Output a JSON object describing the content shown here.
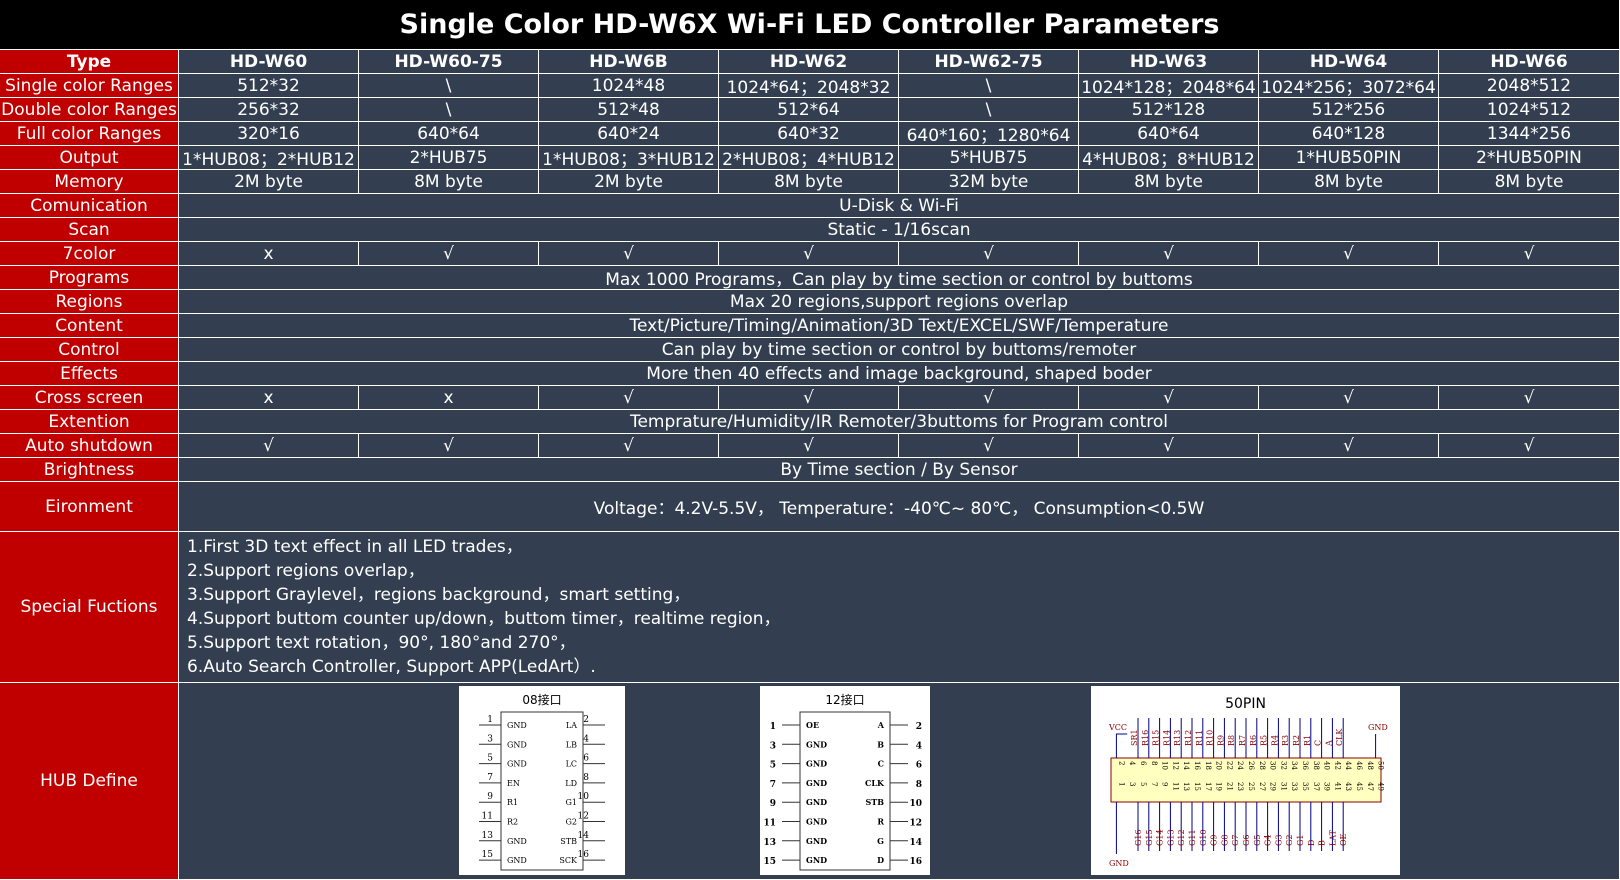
{
  "title": "Single Color HD-W6X Wi-Fi LED Controller Parameters",
  "header": {
    "label": "Type",
    "models": [
      "HD-W60",
      "HD-W60-75",
      "HD-W6B",
      "HD-W62",
      "HD-W62-75",
      "HD-W63",
      "HD-W64",
      "HD-W66"
    ]
  },
  "rows": [
    {
      "label": "Single color Ranges",
      "cells": [
        "512*32",
        "\\",
        "1024*48",
        "1024*64；2048*32",
        "\\",
        "1024*128；2048*64",
        "1024*256；3072*64",
        "2048*512"
      ]
    },
    {
      "label": "Double color Ranges",
      "cells": [
        "256*32",
        "\\",
        "512*48",
        "512*64",
        "\\",
        "512*128",
        "512*256",
        "1024*512"
      ]
    },
    {
      "label": "Full color Ranges",
      "cells": [
        "320*16",
        "640*64",
        "640*24",
        "640*32",
        "640*160；1280*64",
        "640*64",
        "640*128",
        "1344*256"
      ]
    },
    {
      "label": "Output",
      "cells": [
        "1*HUB08；2*HUB12",
        "2*HUB75",
        "1*HUB08；3*HUB12",
        "2*HUB08；4*HUB12",
        "5*HUB75",
        "4*HUB08；8*HUB12",
        "1*HUB50PIN",
        "2*HUB50PIN"
      ]
    },
    {
      "label": "Memory",
      "cells": [
        "2M byte",
        "8M byte",
        "2M byte",
        "8M byte",
        "32M byte",
        "8M byte",
        "8M byte",
        "8M byte"
      ]
    },
    {
      "label": "Comunication",
      "span": "U-Disk & Wi-Fi"
    },
    {
      "label": "Scan",
      "span": "Static - 1/16scan"
    },
    {
      "label": "7color",
      "cells": [
        "x",
        "√",
        "√",
        "√",
        "√",
        "√",
        "√",
        "√"
      ]
    },
    {
      "label": "Programs",
      "span": "Max 1000 Programs，Can play by time section or control by buttoms"
    },
    {
      "label": "Regions",
      "span": "Max 20 regions,support regions overlap"
    },
    {
      "label": "Content",
      "span": "Text/Picture/Timing/Animation/3D Text/EXCEL/SWF/Temperature"
    },
    {
      "label": "Control",
      "span": "Can play by time section or control by buttoms/remoter"
    },
    {
      "label": "Effects",
      "span": "More then 40 effects and image background, shaped boder"
    },
    {
      "label": "Cross screen",
      "cells": [
        "x",
        "x",
        "√",
        "√",
        "√",
        "√",
        "√",
        "√"
      ]
    },
    {
      "label": "Extention",
      "span": "Temprature/Humidity/IR Remoter/3buttoms for Program control"
    },
    {
      "label": "Auto shutdown",
      "cells": [
        "√",
        "√",
        "√",
        "√",
        "√",
        "√",
        "√",
        "√"
      ]
    },
    {
      "label": "Brightness",
      "span": "By Time section / By Sensor"
    },
    {
      "label": "Eironment",
      "span": "Voltage：4.2V-5.5V， Temperature：-40℃~ 80℃， Consumption<0.5W"
    },
    {
      "label": "Special Fuctions",
      "lines": [
        "1.First 3D text effect in all LED trades，",
        "2.Support regions overlap，",
        "3.Support Graylevel，regions background，smart setting，",
        "4.Support buttom counter up/down，buttom timer，realtime region，",
        "5.Support text rotation，90°, 180°and 270°，",
        "6.Auto Search Controller, Support APP(LedArt）."
      ]
    }
  ],
  "hub": {
    "label": "HUB Define",
    "diagrams": [
      {
        "title": "08接口",
        "pins": [
          [
            1,
            "GND",
            "LA",
            2
          ],
          [
            3,
            "GND",
            "LB",
            4
          ],
          [
            5,
            "GND",
            "LC",
            6
          ],
          [
            7,
            "EN",
            "LD",
            8
          ],
          [
            9,
            "R1",
            "G1",
            10
          ],
          [
            11,
            "R2",
            "G2",
            12
          ],
          [
            13,
            "GND",
            "STB",
            14
          ],
          [
            15,
            "GND",
            "SCK",
            16
          ]
        ]
      },
      {
        "title": "12接口",
        "pins": [
          [
            1,
            "OE",
            "A",
            2
          ],
          [
            3,
            "GND",
            "B",
            4
          ],
          [
            5,
            "GND",
            "C",
            6
          ],
          [
            7,
            "GND",
            "CLK",
            8
          ],
          [
            9,
            "GND",
            "STB",
            10
          ],
          [
            11,
            "GND",
            "R",
            12
          ],
          [
            13,
            "GND",
            "G",
            14
          ],
          [
            15,
            "GND",
            "D",
            16
          ]
        ]
      },
      {
        "title": "50PIN",
        "vcc": "VCC",
        "gnd_top": "GND",
        "gnd_bottom": "GND",
        "top_numbers": [
          2,
          4,
          6,
          8,
          10,
          12,
          14,
          16,
          18,
          20,
          22,
          24,
          26,
          28,
          30,
          32,
          34,
          36,
          38,
          40,
          42,
          44,
          46,
          48,
          50
        ],
        "bottom_numbers": [
          1,
          3,
          5,
          7,
          9,
          11,
          13,
          15,
          17,
          19,
          21,
          23,
          25,
          27,
          29,
          31,
          33,
          35,
          37,
          39,
          41,
          43,
          45,
          47,
          49
        ],
        "top_labels": [
          "SR1",
          "R16",
          "R15",
          "R14",
          "R13",
          "R12",
          "R11",
          "R10",
          "R9",
          "R8",
          "R7",
          "R6",
          "R5",
          "R4",
          "R3",
          "R2",
          "R1",
          "C",
          "A",
          "CLK"
        ],
        "bottom_labels": [
          "G16",
          "G15",
          "G14",
          "G13",
          "G12",
          "G11",
          "G10",
          "G9",
          "G8",
          "G7",
          "G6",
          "G5",
          "G4",
          "G3",
          "G2",
          "G1",
          "D",
          "B",
          "LAT",
          "OE"
        ]
      }
    ]
  }
}
